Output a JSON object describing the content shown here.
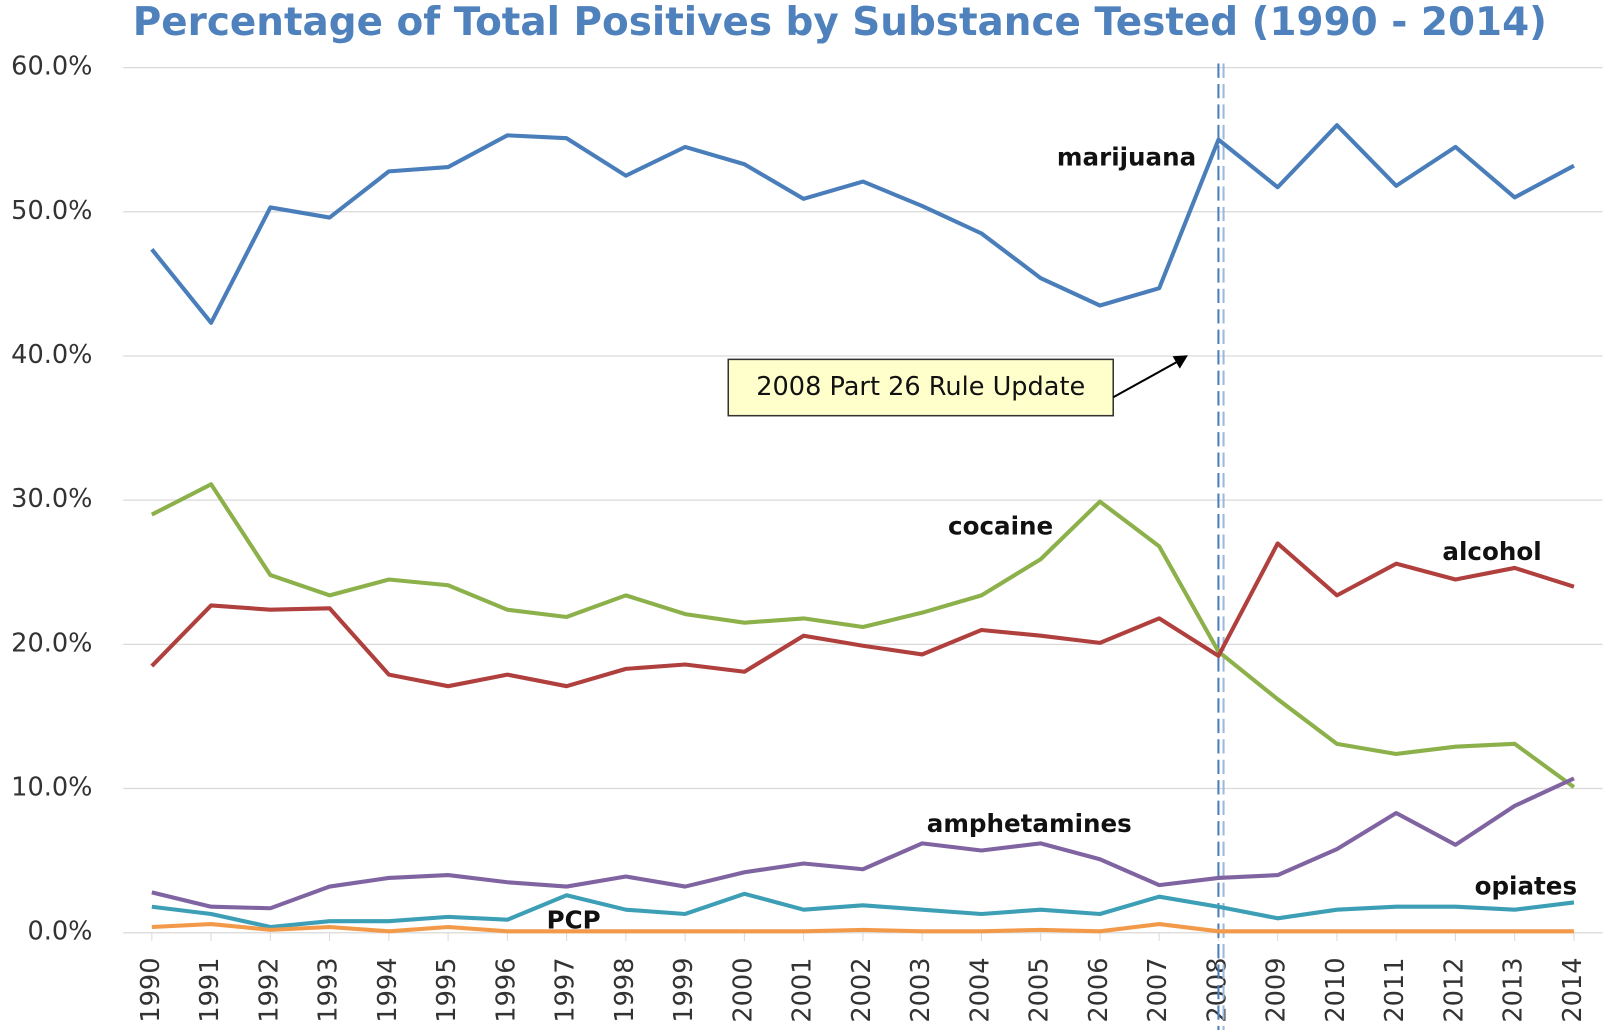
{
  "chart_data": {
    "type": "line",
    "title": "Percentage of Total Positives by Substance Tested (1990 - 2014)",
    "annotation": "2008 Part 26 Rule Update",
    "categories": [
      "1990",
      "1991",
      "1992",
      "1993",
      "1994",
      "1995",
      "1996",
      "1997",
      "1998",
      "1999",
      "2000",
      "2001",
      "2002",
      "2003",
      "2004",
      "2005",
      "2006",
      "2007",
      "2008",
      "2009",
      "2010",
      "2011",
      "2012",
      "2013",
      "2014"
    ],
    "ylim": [
      0,
      60
    ],
    "yticks": [
      {
        "value": 0,
        "label": "0.0%"
      },
      {
        "value": 10,
        "label": "10.0%"
      },
      {
        "value": 20,
        "label": "20.0%"
      },
      {
        "value": 30,
        "label": "30.0%"
      },
      {
        "value": 40,
        "label": "40.0%"
      },
      {
        "value": 50,
        "label": "50.0%"
      },
      {
        "value": 60,
        "label": "60.0%"
      }
    ],
    "grid": true,
    "series": [
      {
        "name": "marijuana",
        "color": "#4a7ebb",
        "values": [
          47.4,
          42.3,
          50.3,
          49.6,
          52.8,
          53.1,
          55.3,
          55.1,
          52.5,
          54.5,
          53.3,
          50.9,
          52.1,
          50.4,
          48.5,
          45.4,
          43.5,
          44.7,
          55.0,
          51.7,
          56.0,
          51.8,
          54.5,
          51.0,
          53.2
        ]
      },
      {
        "name": "cocaine",
        "color": "#8cb04a",
        "values": [
          29.0,
          31.1,
          24.8,
          23.4,
          24.5,
          24.1,
          22.4,
          21.9,
          23.4,
          22.1,
          21.5,
          21.8,
          21.2,
          22.2,
          23.4,
          25.9,
          29.9,
          26.8,
          19.5,
          16.2,
          13.1,
          12.4,
          12.9,
          13.1,
          10.1
        ]
      },
      {
        "name": "alcohol",
        "color": "#b0403d",
        "values": [
          18.5,
          22.7,
          22.4,
          22.5,
          17.9,
          17.1,
          17.9,
          17.1,
          18.3,
          18.6,
          18.1,
          20.6,
          19.9,
          19.3,
          21.0,
          20.6,
          20.1,
          21.8,
          19.2,
          27.0,
          23.4,
          25.6,
          24.5,
          25.3,
          24.0
        ]
      },
      {
        "name": "amphetamines",
        "color": "#8064a2",
        "values": [
          2.8,
          1.8,
          1.7,
          3.2,
          3.8,
          4.0,
          3.5,
          3.2,
          3.9,
          3.2,
          4.2,
          4.8,
          4.4,
          6.2,
          5.7,
          6.2,
          5.1,
          3.3,
          3.8,
          4.0,
          5.8,
          8.3,
          6.1,
          8.8,
          10.7
        ]
      },
      {
        "name": "opiates",
        "color": "#3c9fb6",
        "values": [
          1.8,
          1.3,
          0.4,
          0.8,
          0.8,
          1.1,
          0.9,
          2.6,
          1.6,
          1.3,
          2.7,
          1.6,
          1.9,
          1.6,
          1.3,
          1.6,
          1.3,
          2.5,
          1.8,
          1.0,
          1.6,
          1.8,
          1.8,
          1.6,
          2.1
        ]
      },
      {
        "name": "PCP",
        "color": "#f39a4a",
        "values": [
          0.4,
          0.6,
          0.2,
          0.4,
          0.1,
          0.4,
          0.1,
          0.1,
          0.1,
          0.1,
          0.1,
          0.1,
          0.2,
          0.1,
          0.1,
          0.2,
          0.1,
          0.6,
          0.1,
          0.1,
          0.1,
          0.1,
          0.1,
          0.1,
          0.1
        ]
      }
    ]
  }
}
